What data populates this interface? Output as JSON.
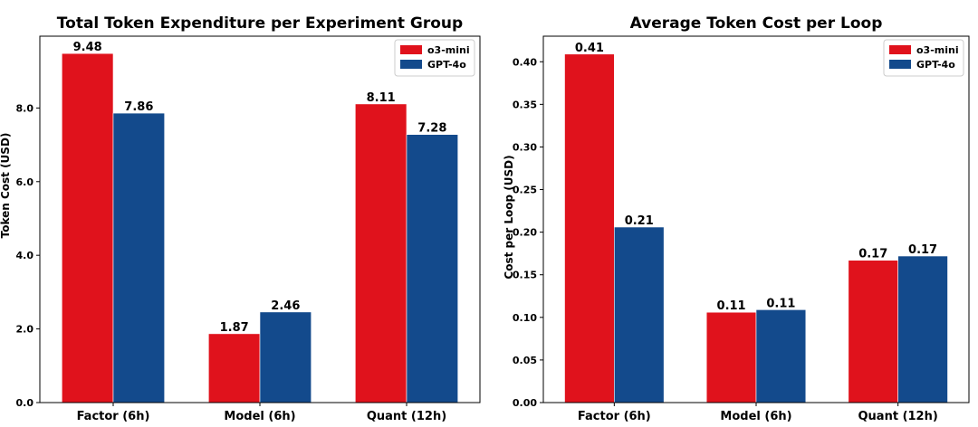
{
  "colors": {
    "o3_mini": "#e0121c",
    "gpt_4o": "#134a8c"
  },
  "chart_data": [
    {
      "type": "bar",
      "title": "Total Token Expenditure per Experiment Group",
      "xlabel": "",
      "ylabel": "Token Cost (USD)",
      "categories": [
        "Factor (6h)",
        "Model (6h)",
        "Quant (12h)"
      ],
      "series": [
        {
          "name": "o3-mini",
          "values": [
            9.48,
            1.87,
            8.11
          ],
          "labels": [
            "9.48",
            "1.87",
            "8.11"
          ]
        },
        {
          "name": "GPT-4o",
          "values": [
            7.86,
            2.46,
            7.28
          ],
          "labels": [
            "7.86",
            "2.46",
            "7.28"
          ]
        }
      ],
      "ylim": [
        0,
        9.95
      ],
      "yticks": [
        0,
        2,
        4,
        6,
        8
      ],
      "ytick_labels": [
        "0.0",
        "2.0",
        "4.0",
        "6.0",
        "8.0"
      ],
      "legend": "top-right",
      "grid": false
    },
    {
      "type": "bar",
      "title": "Average Token Cost per Loop",
      "xlabel": "",
      "ylabel": "Cost per Loop (USD)",
      "categories": [
        "Factor (6h)",
        "Model (6h)",
        "Quant (12h)"
      ],
      "series": [
        {
          "name": "o3-mini",
          "values": [
            0.409,
            0.106,
            0.167
          ],
          "labels": [
            "0.41",
            "0.11",
            "0.17"
          ]
        },
        {
          "name": "GPT-4o",
          "values": [
            0.206,
            0.109,
            0.172
          ],
          "labels": [
            "0.21",
            "0.11",
            "0.17"
          ]
        }
      ],
      "ylim": [
        0,
        0.43
      ],
      "yticks": [
        0,
        0.05,
        0.1,
        0.15,
        0.2,
        0.25,
        0.3,
        0.35,
        0.4
      ],
      "ytick_labels": [
        "0.00",
        "0.05",
        "0.10",
        "0.15",
        "0.20",
        "0.25",
        "0.30",
        "0.35",
        "0.40"
      ],
      "legend": "top-right",
      "grid": false
    }
  ]
}
